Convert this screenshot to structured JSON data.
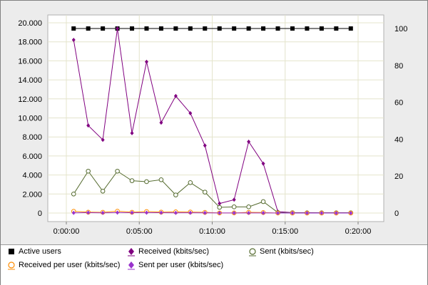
{
  "chart_data": {
    "type": "line",
    "x_ticks": [
      "0:00:00",
      "0:05:00",
      "0:10:00",
      "0:15:00",
      "0:20:00"
    ],
    "x_range_seconds": [
      0,
      1200
    ],
    "y_left_ticks": [
      "0",
      "2.000",
      "4.000",
      "6.000",
      "8.000",
      "10.000",
      "12.000",
      "14.000",
      "16.000",
      "18.000",
      "20.000"
    ],
    "y_left_range": [
      0,
      20000
    ],
    "y_right_ticks": [
      "0",
      "20",
      "40",
      "60",
      "80",
      "100"
    ],
    "y_right_range": [
      0,
      100
    ],
    "grid": true,
    "x": [
      "0:00:30",
      "0:01:30",
      "0:02:30",
      "0:03:30",
      "0:04:30",
      "0:05:30",
      "0:06:30",
      "0:07:30",
      "0:08:30",
      "0:09:30",
      "0:10:30",
      "0:11:30",
      "0:12:30",
      "0:13:30",
      "0:14:30",
      "0:15:30",
      "0:16:30",
      "0:17:30",
      "0:18:30",
      "0:19:30"
    ],
    "series": [
      {
        "name": "Active users",
        "axis": "right",
        "color": "#000000",
        "marker": "square",
        "values": [
          100,
          100,
          100,
          100,
          100,
          100,
          100,
          100,
          100,
          100,
          100,
          100,
          100,
          100,
          100,
          100,
          100,
          100,
          100,
          100
        ]
      },
      {
        "name": "Received (kbits/sec)",
        "axis": "left",
        "color": "#800080",
        "marker": "diamond",
        "values": [
          18200,
          9200,
          7700,
          19400,
          8400,
          15900,
          9500,
          12300,
          10500,
          7100,
          1000,
          1400,
          7500,
          5200,
          150,
          50,
          40,
          30,
          30,
          30
        ]
      },
      {
        "name": "Sent (kbits/sec)",
        "axis": "left",
        "color": "#556b2f",
        "marker": "circle-open",
        "values": [
          2000,
          4400,
          2300,
          4400,
          3400,
          3300,
          3500,
          1900,
          3200,
          2200,
          600,
          650,
          650,
          1200,
          50,
          30,
          20,
          20,
          20,
          20
        ]
      },
      {
        "name": "Received per user (kbits/sec)",
        "axis": "left",
        "color": "#ff8c00",
        "marker": "circle-open",
        "values": [
          182,
          92,
          77,
          194,
          84,
          159,
          95,
          123,
          105,
          71,
          10,
          14,
          75,
          52,
          2,
          1,
          0,
          0,
          0,
          0
        ]
      },
      {
        "name": "Sent per user (kbits/sec)",
        "axis": "left",
        "color": "#9932cc",
        "marker": "diamond",
        "values": [
          20,
          44,
          23,
          44,
          34,
          33,
          35,
          19,
          32,
          22,
          6,
          7,
          7,
          12,
          1,
          0,
          0,
          0,
          0,
          0
        ]
      }
    ]
  },
  "legend": {
    "items": [
      {
        "label": "Active users",
        "icon": "black-square-icon",
        "color": "#000000"
      },
      {
        "label": "Received (kbits/sec)",
        "icon": "purple-diamond-icon",
        "color": "#800080"
      },
      {
        "label": "Sent (kbits/sec)",
        "icon": "olive-circle-icon",
        "color": "#556b2f"
      },
      {
        "label": "Received per user (kbits/sec)",
        "icon": "orange-circle-icon",
        "color": "#ff8c00"
      },
      {
        "label": "Sent per user (kbits/sec)",
        "icon": "violet-diamond-icon",
        "color": "#9932cc"
      }
    ]
  }
}
